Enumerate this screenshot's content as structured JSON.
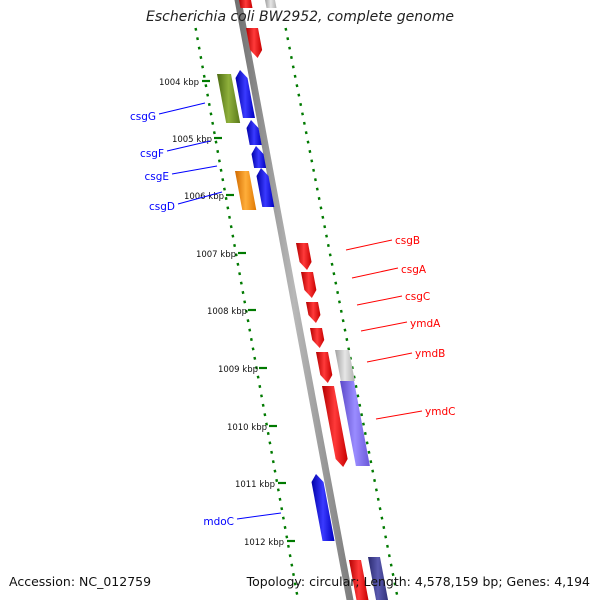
{
  "title": "Escherichia coli BW2952, complete genome",
  "footer": {
    "accession": "Accession: NC_012759",
    "summary": "Topology: circular; Length: 4,578,159 bp; Genes: 4,194"
  },
  "ruler": {
    "ticks": [
      "1004 kbp",
      "1005 kbp",
      "1006 kbp",
      "1007 kbp",
      "1008 kbp",
      "1009 kbp",
      "1010 kbp",
      "1011 kbp",
      "1012 kbp"
    ]
  },
  "colors": {
    "forward": "#ff0000",
    "reverse": "#0000ff",
    "gc_skew": "#007a00",
    "backbone": "#8a8a8a",
    "olive": "#6b8e23",
    "orange": "#ff8c00",
    "grey": "#c0c0c0",
    "slate": "#7b68ee"
  },
  "genes": {
    "reverse": [
      {
        "label": "csgG"
      },
      {
        "label": "csgF"
      },
      {
        "label": "csgE"
      },
      {
        "label": "csgD"
      },
      {
        "label": "mdoC"
      }
    ],
    "forward": [
      {
        "label": "csgB"
      },
      {
        "label": "csgA"
      },
      {
        "label": "csgC"
      },
      {
        "label": "ymdA"
      },
      {
        "label": "ymdB"
      },
      {
        "label": "ymdC"
      }
    ]
  }
}
